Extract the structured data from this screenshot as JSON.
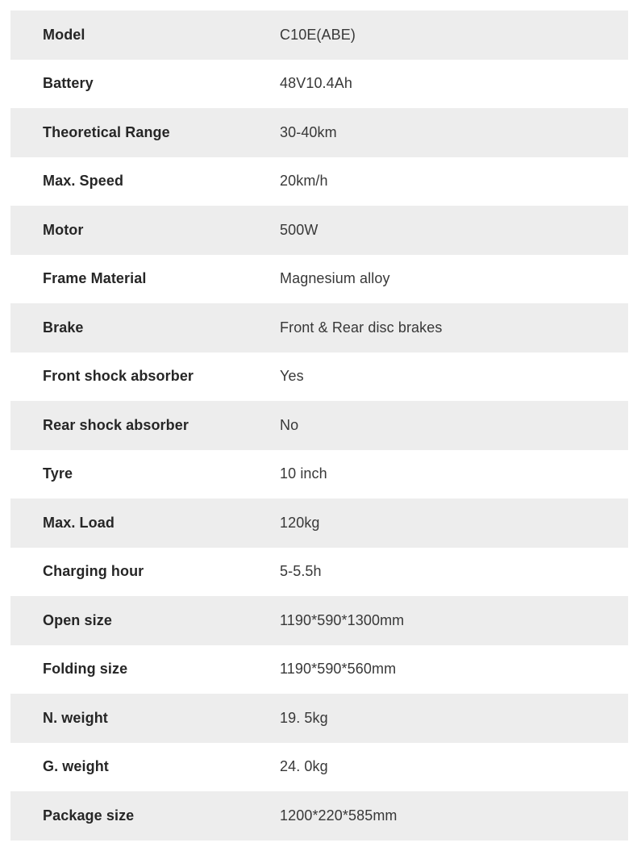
{
  "colors": {
    "page_background": "#ffffff",
    "row_alt_background": "#ededed",
    "row_background": "#ffffff",
    "label_text": "#262626",
    "value_text": "#383838"
  },
  "spec_table": {
    "rows": [
      {
        "label": "Model",
        "value": "C10E(ABE)"
      },
      {
        "label": "Battery",
        "value": "48V10.4Ah"
      },
      {
        "label": "Theoretical Range",
        "value": "30-40km"
      },
      {
        "label": "Max. Speed",
        "value": "20km/h"
      },
      {
        "label": "Motor",
        "value": "500W"
      },
      {
        "label": "Frame Material",
        "value": "Magnesium alloy"
      },
      {
        "label": "Brake",
        "value": "Front & Rear disc brakes"
      },
      {
        "label": "Front shock absorber",
        "value": "Yes"
      },
      {
        "label": "Rear shock absorber",
        "value": "No"
      },
      {
        "label": "Tyre",
        "value": "10 inch"
      },
      {
        "label": "Max. Load",
        "value": "120kg"
      },
      {
        "label": "Charging hour",
        "value": "5-5.5h"
      },
      {
        "label": "Open size",
        "value": "1190*590*1300mm"
      },
      {
        "label": "Folding size",
        "value": "1190*590*560mm"
      },
      {
        "label": "N. weight",
        "value": "19. 5kg"
      },
      {
        "label": "G. weight",
        "value": "24. 0kg"
      },
      {
        "label": "Package size",
        "value": "1200*220*585mm"
      }
    ]
  }
}
